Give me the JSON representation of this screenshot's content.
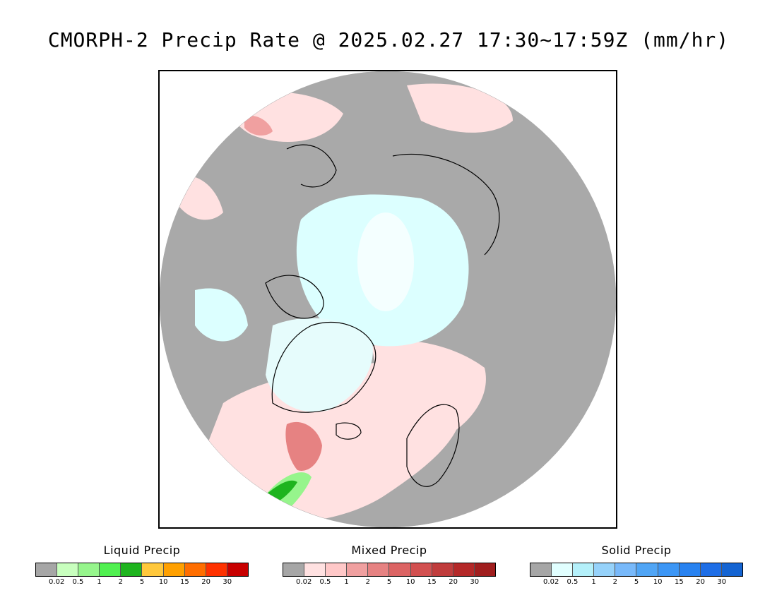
{
  "title": "CMORPH-2 Precip Rate @ 2025.02.27 17:30~17:59Z (mm/hr)",
  "map": {
    "projection": "north polar stereographic",
    "land_outline_color": "#000000",
    "no_precip_color": "#a9a9a9",
    "ocean_color": "#ffffff"
  },
  "legends": [
    {
      "id": "liquid",
      "title": "Liquid Precip",
      "colors": [
        "#a6a6a6",
        "#c8ffbe",
        "#96f58c",
        "#50f050",
        "#1eb41e",
        "#ffc83c",
        "#ffa000",
        "#ff6e00",
        "#ff3200",
        "#c80000"
      ],
      "ticks": [
        "0.02",
        "0.5",
        "1",
        "2",
        "5",
        "10",
        "15",
        "20",
        "30"
      ]
    },
    {
      "id": "mixed",
      "title": "Mixed Precip",
      "colors": [
        "#a6a6a6",
        "#ffe1e1",
        "#ffc8c8",
        "#f0a0a0",
        "#e68282",
        "#dc6464",
        "#d25050",
        "#c03c3c",
        "#b42828",
        "#a01e1e"
      ],
      "ticks": [
        "0.02",
        "0.5",
        "1",
        "2",
        "5",
        "10",
        "15",
        "20",
        "30"
      ]
    },
    {
      "id": "solid",
      "title": "Solid Precip",
      "colors": [
        "#a6a6a6",
        "#e1ffff",
        "#b4f0fa",
        "#96d2fa",
        "#78b9fa",
        "#50a5f5",
        "#3c96f5",
        "#2882f0",
        "#1e6ee6",
        "#1464d2"
      ],
      "ticks": [
        "0.02",
        "0.5",
        "1",
        "2",
        "5",
        "10",
        "15",
        "20",
        "30"
      ]
    }
  ]
}
